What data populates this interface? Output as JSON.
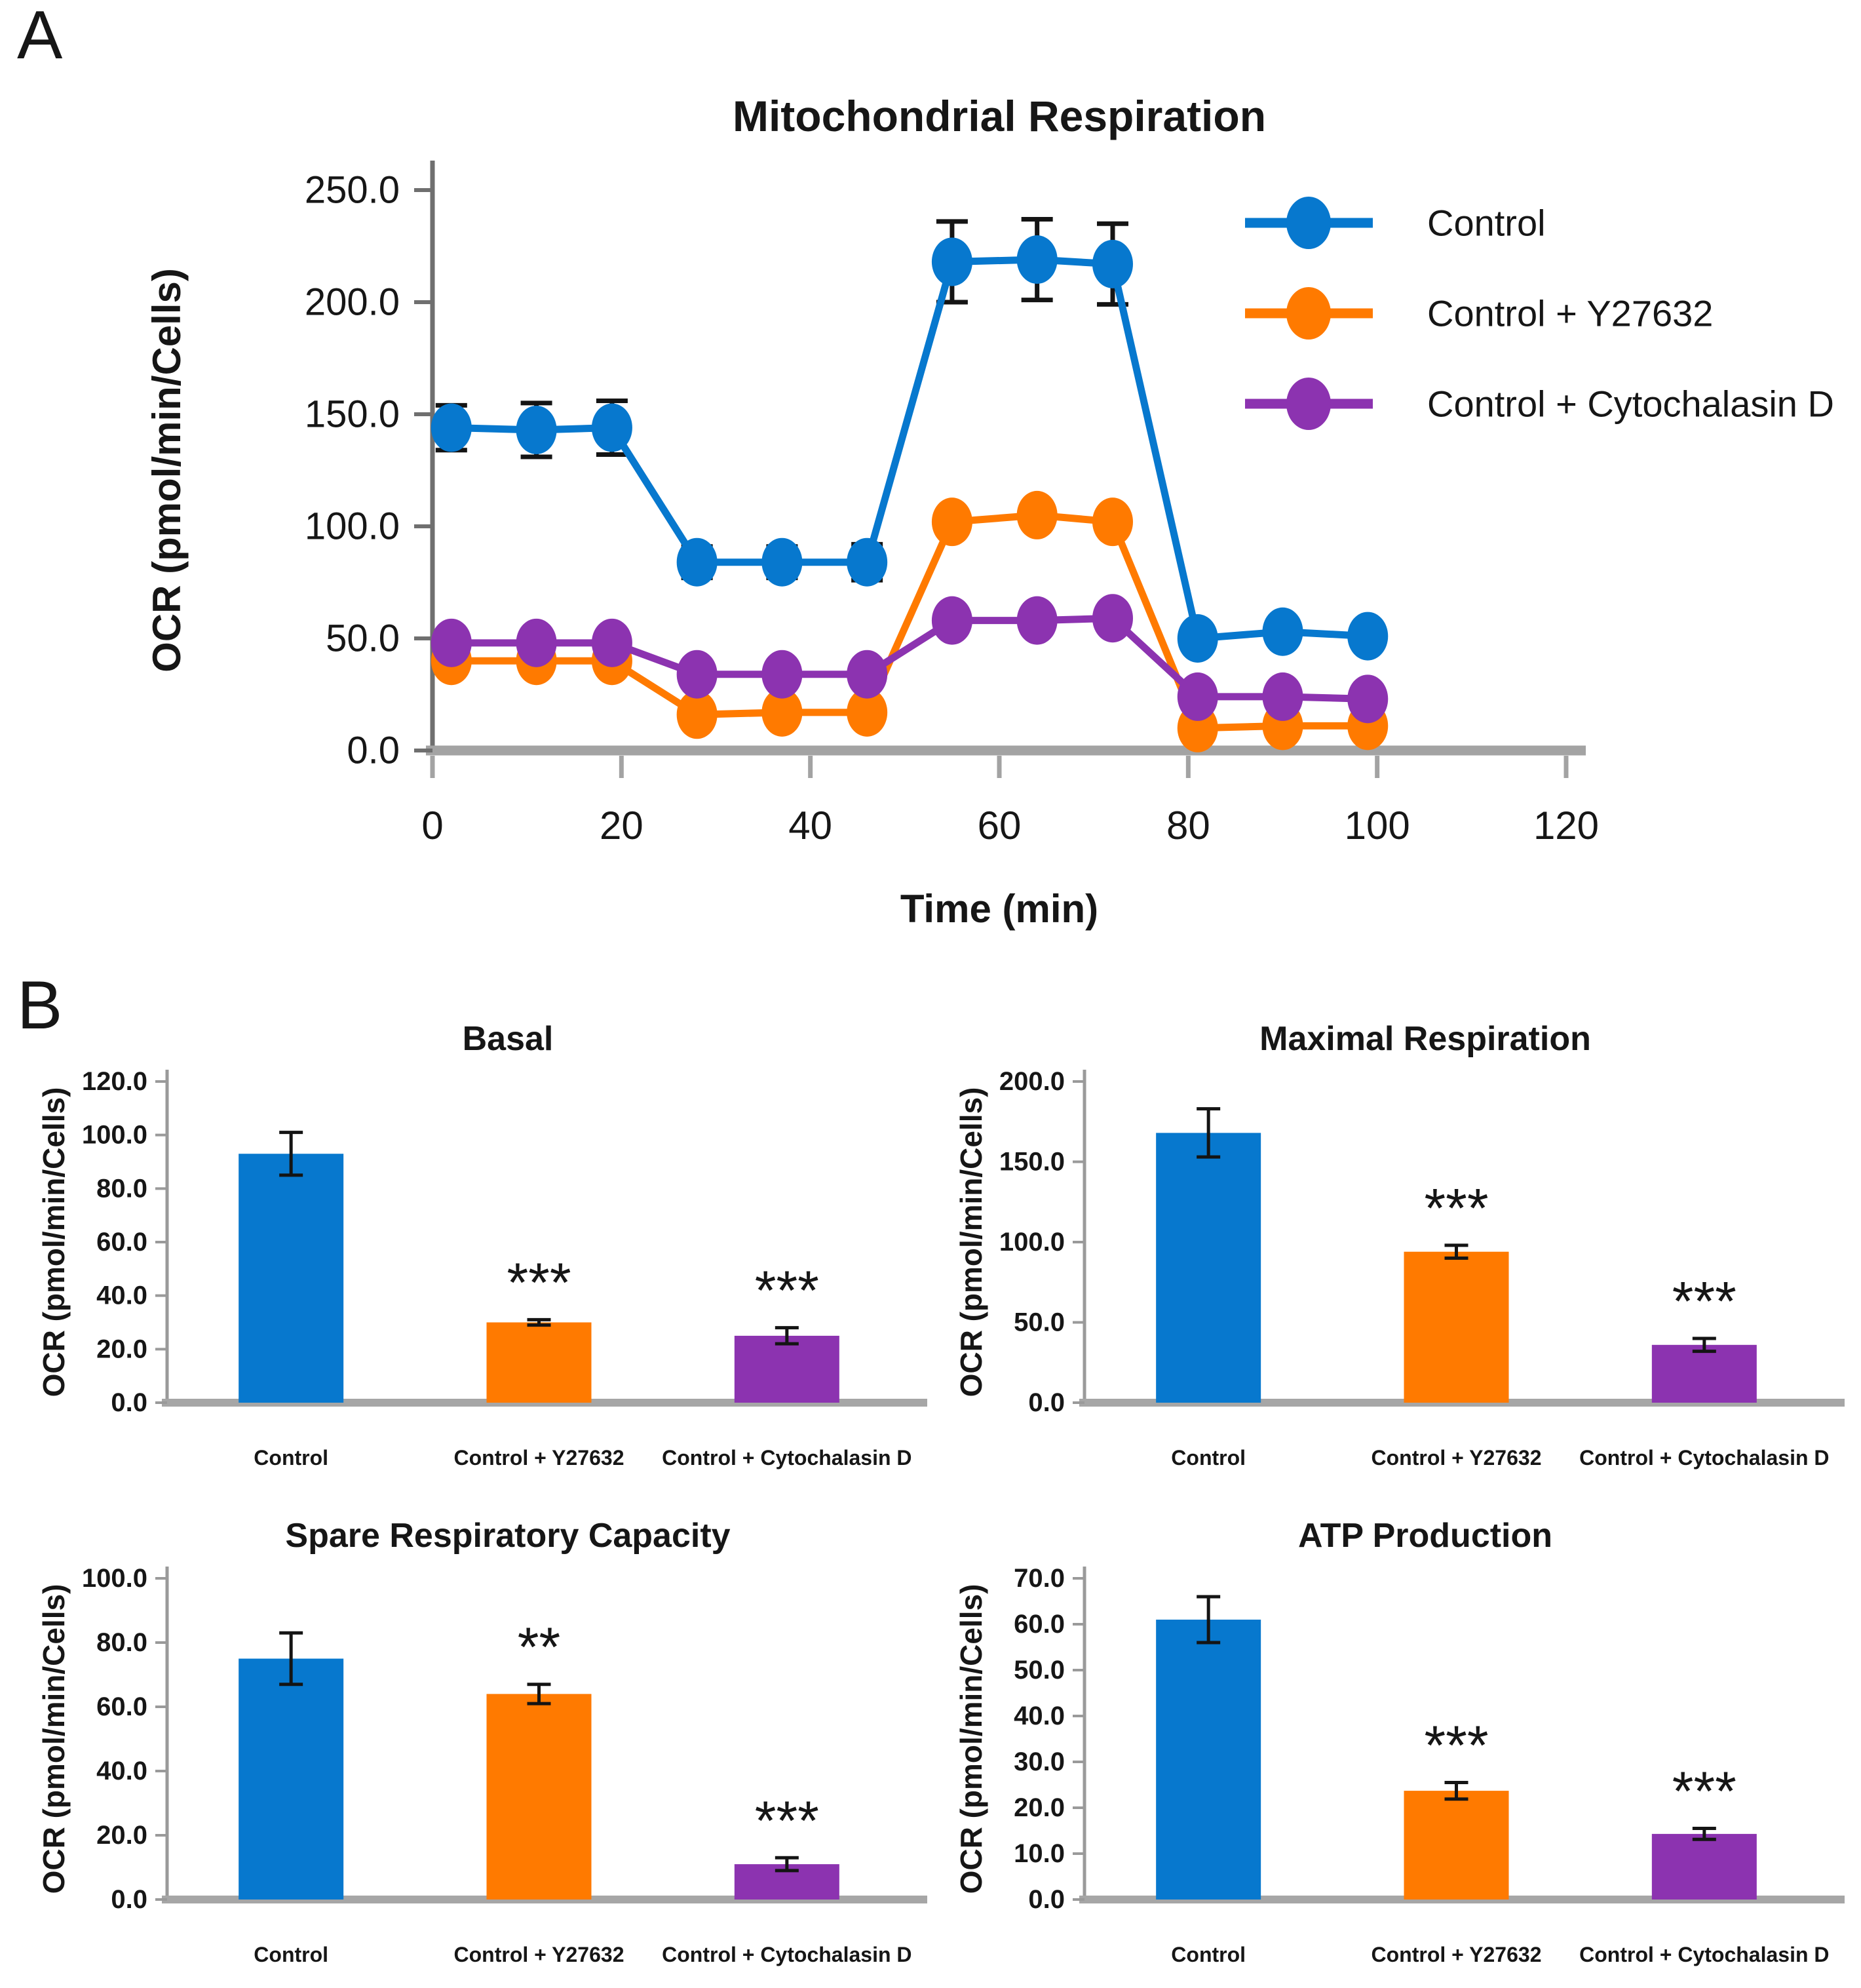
{
  "panels": {
    "a_label": "A",
    "b_label": "B"
  },
  "colors": {
    "blue": "#0778CE",
    "orange": "#FF7A00",
    "purple": "#8C33B0",
    "error": "#141414",
    "axis_gray": "#A3A3A3",
    "text": "#161616"
  },
  "chart_data": [
    {
      "id": "mito",
      "type": "line",
      "title": "Mitochondrial Respiration",
      "xlabel": "Time (min)",
      "ylabel": "OCR (pmol/min/Cells)",
      "xlim": [
        0,
        120
      ],
      "ylim": [
        0,
        250
      ],
      "xticks": [
        "0",
        "20",
        "40",
        "60",
        "80",
        "100",
        "120"
      ],
      "yticks": [
        "0.0",
        "50.0",
        "100.0",
        "150.0",
        "200.0",
        "250.0"
      ],
      "grid": false,
      "legend_position": "right",
      "x": [
        2,
        11,
        19,
        28,
        37,
        46,
        55,
        64,
        72,
        81,
        90,
        99
      ],
      "series": [
        {
          "name": "Control",
          "color_key": "blue",
          "values": [
            144,
            143,
            144,
            84,
            84,
            84,
            218,
            219,
            217,
            50,
            53,
            51
          ],
          "errors": [
            10,
            12,
            12,
            7,
            7,
            8,
            18,
            18,
            18,
            0,
            0,
            0
          ]
        },
        {
          "name": "Control + Y27632",
          "color_key": "orange",
          "values": [
            40,
            40,
            40,
            16,
            17,
            17,
            102,
            105,
            102,
            10,
            11,
            11
          ],
          "errors": [
            0,
            0,
            0,
            0,
            0,
            0,
            0,
            0,
            0,
            0,
            0,
            0
          ]
        },
        {
          "name": "Control + Cytochalasin D",
          "color_key": "purple",
          "values": [
            48,
            48,
            48,
            34,
            34,
            34,
            58,
            58,
            59,
            24,
            24,
            23
          ],
          "errors": [
            0,
            0,
            0,
            0,
            0,
            0,
            0,
            0,
            0,
            0,
            0,
            0
          ]
        }
      ]
    },
    {
      "id": "basal",
      "type": "bar",
      "title": "Basal",
      "ylabel": "OCR (pmol/min/Cells)",
      "ylim": [
        0,
        120
      ],
      "yticks": [
        "0.0",
        "20.0",
        "40.0",
        "60.0",
        "80.0",
        "100.0",
        "120.0"
      ],
      "categories": [
        "Control",
        "Control + Y27632",
        "Control + Cytochalasin D"
      ],
      "color_keys": [
        "blue",
        "orange",
        "purple"
      ],
      "values": [
        93,
        30,
        25
      ],
      "errors": [
        8,
        1,
        3
      ],
      "significance": [
        "",
        "***",
        "***"
      ]
    },
    {
      "id": "maximal",
      "type": "bar",
      "title": "Maximal Respiration",
      "ylabel": "OCR (pmol/min/Cells)",
      "ylim": [
        0,
        200
      ],
      "yticks": [
        "0.0",
        "50.0",
        "100.0",
        "150.0",
        "200.0"
      ],
      "categories": [
        "Control",
        "Control + Y27632",
        "Control + Cytochalasin D"
      ],
      "color_keys": [
        "blue",
        "orange",
        "purple"
      ],
      "values": [
        168,
        94,
        36
      ],
      "errors": [
        15,
        4,
        4
      ],
      "significance": [
        "",
        "***",
        "***"
      ]
    },
    {
      "id": "spare",
      "type": "bar",
      "title": "Spare Respiratory Capacity",
      "ylabel": "OCR (pmol/min/Cells)",
      "ylim": [
        0,
        100
      ],
      "yticks": [
        "0.0",
        "20.0",
        "40.0",
        "60.0",
        "80.0",
        "100.0"
      ],
      "categories": [
        "Control",
        "Control + Y27632",
        "Control + Cytochalasin D"
      ],
      "color_keys": [
        "blue",
        "orange",
        "purple"
      ],
      "values": [
        75,
        64,
        11
      ],
      "errors": [
        8,
        3,
        2
      ],
      "significance": [
        "",
        "**",
        "***"
      ]
    },
    {
      "id": "atp",
      "type": "bar",
      "title": "ATP Production",
      "ylabel": "OCR (pmol/min/Cells)",
      "ylim": [
        0,
        70
      ],
      "yticks": [
        "0.0",
        "10.0",
        "20.0",
        "30.0",
        "40.0",
        "50.0",
        "60.0",
        "70.0"
      ],
      "categories": [
        "Control",
        "Control + Y27632",
        "Control + Cytochalasin D"
      ],
      "color_keys": [
        "blue",
        "orange",
        "purple"
      ],
      "values": [
        61,
        23.7,
        14.3
      ],
      "errors": [
        5,
        1.8,
        1.2
      ],
      "significance": [
        "",
        "***",
        "***"
      ]
    }
  ]
}
